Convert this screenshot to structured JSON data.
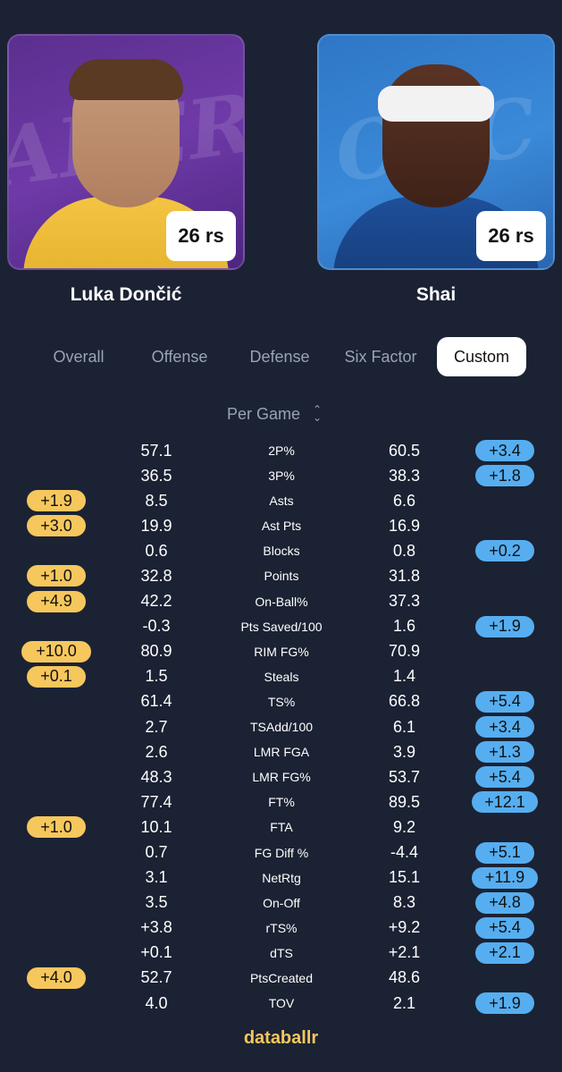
{
  "players": {
    "left": {
      "name": "Luka Dončić",
      "badge": "26 rs",
      "team_watermark": "Lakers"
    },
    "right": {
      "name": "Shai",
      "badge": "26 rs",
      "team_watermark": "OKC"
    }
  },
  "tabs": [
    "Overall",
    "Offense",
    "Defense",
    "Six Factor",
    "Custom"
  ],
  "active_tab": "Custom",
  "mode": {
    "label": "Per Game"
  },
  "stats": [
    {
      "name": "2P%",
      "left": "57.1",
      "right": "60.5",
      "left_diff": "",
      "right_diff": "+3.4"
    },
    {
      "name": "3P%",
      "left": "36.5",
      "right": "38.3",
      "left_diff": "",
      "right_diff": "+1.8"
    },
    {
      "name": "Asts",
      "left": "8.5",
      "right": "6.6",
      "left_diff": "+1.9",
      "right_diff": ""
    },
    {
      "name": "Ast Pts",
      "left": "19.9",
      "right": "16.9",
      "left_diff": "+3.0",
      "right_diff": ""
    },
    {
      "name": "Blocks",
      "left": "0.6",
      "right": "0.8",
      "left_diff": "",
      "right_diff": "+0.2"
    },
    {
      "name": "Points",
      "left": "32.8",
      "right": "31.8",
      "left_diff": "+1.0",
      "right_diff": ""
    },
    {
      "name": "On-Ball%",
      "left": "42.2",
      "right": "37.3",
      "left_diff": "+4.9",
      "right_diff": ""
    },
    {
      "name": "Pts Saved/100",
      "left": "-0.3",
      "right": "1.6",
      "left_diff": "",
      "right_diff": "+1.9"
    },
    {
      "name": "RIM FG%",
      "left": "80.9",
      "right": "70.9",
      "left_diff": "+10.0",
      "right_diff": ""
    },
    {
      "name": "Steals",
      "left": "1.5",
      "right": "1.4",
      "left_diff": "+0.1",
      "right_diff": ""
    },
    {
      "name": "TS%",
      "left": "61.4",
      "right": "66.8",
      "left_diff": "",
      "right_diff": "+5.4"
    },
    {
      "name": "TSAdd/100",
      "left": "2.7",
      "right": "6.1",
      "left_diff": "",
      "right_diff": "+3.4"
    },
    {
      "name": "LMR FGA",
      "left": "2.6",
      "right": "3.9",
      "left_diff": "",
      "right_diff": "+1.3"
    },
    {
      "name": "LMR FG%",
      "left": "48.3",
      "right": "53.7",
      "left_diff": "",
      "right_diff": "+5.4"
    },
    {
      "name": "FT%",
      "left": "77.4",
      "right": "89.5",
      "left_diff": "",
      "right_diff": "+12.1"
    },
    {
      "name": "FTA",
      "left": "10.1",
      "right": "9.2",
      "left_diff": "+1.0",
      "right_diff": ""
    },
    {
      "name": "FG Diff %",
      "left": "0.7",
      "right": "-4.4",
      "left_diff": "",
      "right_diff": "+5.1"
    },
    {
      "name": "NetRtg",
      "left": "3.1",
      "right": "15.1",
      "left_diff": "",
      "right_diff": "+11.9"
    },
    {
      "name": "On-Off",
      "left": "3.5",
      "right": "8.3",
      "left_diff": "",
      "right_diff": "+4.8"
    },
    {
      "name": "rTS%",
      "left": "+3.8",
      "right": "+9.2",
      "left_diff": "",
      "right_diff": "+5.4"
    },
    {
      "name": "dTS",
      "left": "+0.1",
      "right": "+2.1",
      "left_diff": "",
      "right_diff": "+2.1"
    },
    {
      "name": "PtsCreated",
      "left": "52.7",
      "right": "48.6",
      "left_diff": "+4.0",
      "right_diff": ""
    },
    {
      "name": "TOV",
      "left": "4.0",
      "right": "2.1",
      "left_diff": "",
      "right_diff": "+1.9"
    }
  ],
  "brand": "databallr",
  "colors": {
    "background": "#1b2233",
    "left_pill": "#f6c75c",
    "right_pill": "#56aef0",
    "brand": "#f6c75c"
  }
}
